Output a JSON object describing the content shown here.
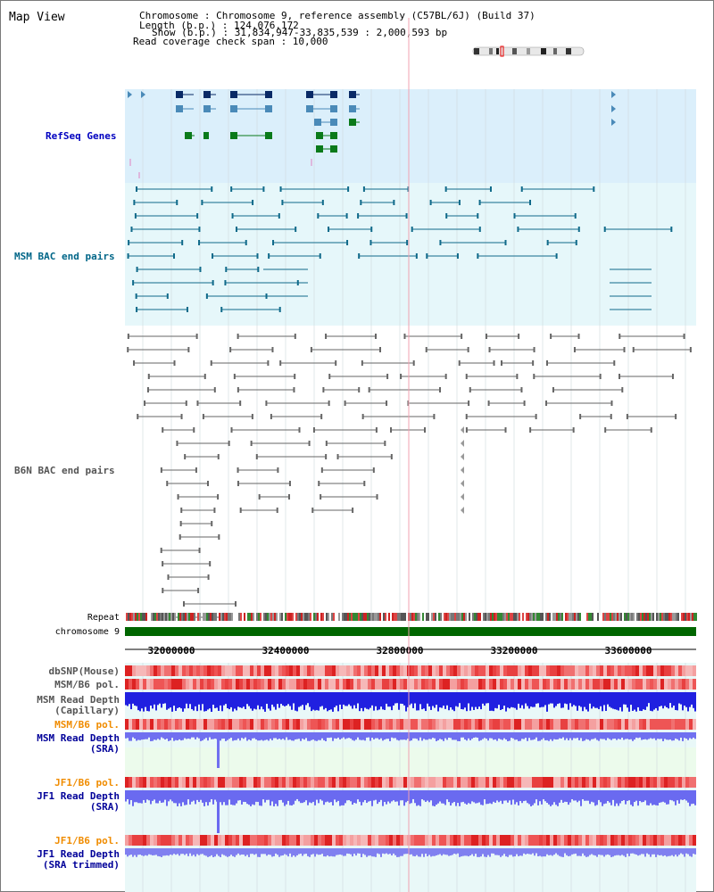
{
  "title": "Map View",
  "header": {
    "chromosome": "Chromosome     : Chromosome 9, reference assembly (C57BL/6J) (Build 37)",
    "length": "Length (b.p.) : 124,076,172",
    "show": "Show (b.p.) : 31,834,947-33,835,539 : 2,000,593 bp",
    "coverage": "Read coverage check span : 10,000"
  },
  "tracks": {
    "refseq": "RefSeq Genes",
    "msm_bac": "MSM BAC end pairs",
    "b6n_bac": "B6N BAC end pairs",
    "repeat": "Repeat",
    "chromosome": "chromosome 9",
    "dbsnp": "dbSNP(Mouse)",
    "msm_b6_pol_1": "MSM/B6 pol.",
    "msm_depth_cap_1": "MSM Read Depth",
    "msm_depth_cap_2": "(Capillary)",
    "msm_b6_pol_2": "MSM/B6 pol.",
    "msm_depth_sra_1": "MSM Read Depth",
    "msm_depth_sra_2": "(SRA)",
    "jf1_b6_pol_1": "JF1/B6 pol.",
    "jf1_depth_sra_1": "JF1 Read Depth",
    "jf1_depth_sra_2": "(SRA)",
    "jf1_b6_pol_2": "JF1/B6 pol.",
    "jf1_depth_trim_1": "JF1 Read Depth",
    "jf1_depth_trim_2": "(SRA trimmed)"
  },
  "axis": {
    "ticks": [
      "32000000",
      "32400000",
      "32800000",
      "33200000",
      "33600000"
    ]
  },
  "colors": {
    "refseq_label": "#0000c0",
    "msm_label": "#006688",
    "b6n_label": "#555555",
    "pol_msm_label": "#ff8800",
    "depth_label": "#000099",
    "gene_dark": "#0a2a66",
    "gene_mid": "#4a8ab8",
    "gene_green": "#0a7a1a",
    "msm_line": "#106a8a",
    "b6n_line": "#666666",
    "chromosome_bar": "#006600"
  }
}
